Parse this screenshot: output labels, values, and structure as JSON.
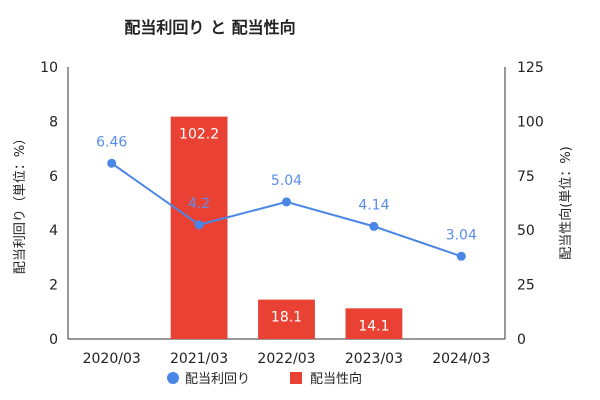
{
  "chart_data": {
    "type": "bar+line",
    "title": "配当利回り と 配当性向",
    "categories": [
      "2020/03",
      "2021/03",
      "2022/03",
      "2023/03",
      "2024/03"
    ],
    "y_left": {
      "label": "配当利回り（単位：%）",
      "range": [
        0,
        10
      ],
      "ticks": [
        "0",
        "2",
        "4",
        "6",
        "8",
        "10"
      ]
    },
    "y_right": {
      "label": "配当性向(単位：%)",
      "range": [
        0,
        125
      ],
      "ticks": [
        "0",
        "25",
        "50",
        "75",
        "100",
        "125"
      ]
    },
    "series": [
      {
        "name": "配当利回り",
        "type": "line",
        "axis": "left",
        "color": "#4a86e8",
        "values": [
          6.46,
          4.2,
          5.04,
          4.14,
          3.04
        ],
        "labels": [
          "6.46",
          "4.2",
          "5.04",
          "4.14",
          "3.04"
        ]
      },
      {
        "name": "配当性向",
        "type": "bar",
        "axis": "right",
        "color": "#e94235",
        "values": [
          null,
          102.2,
          18.1,
          14.1,
          null
        ],
        "labels": [
          "",
          "102.2",
          "18.1",
          "14.1",
          ""
        ]
      }
    ],
    "legend": "bottom",
    "grid": false
  }
}
